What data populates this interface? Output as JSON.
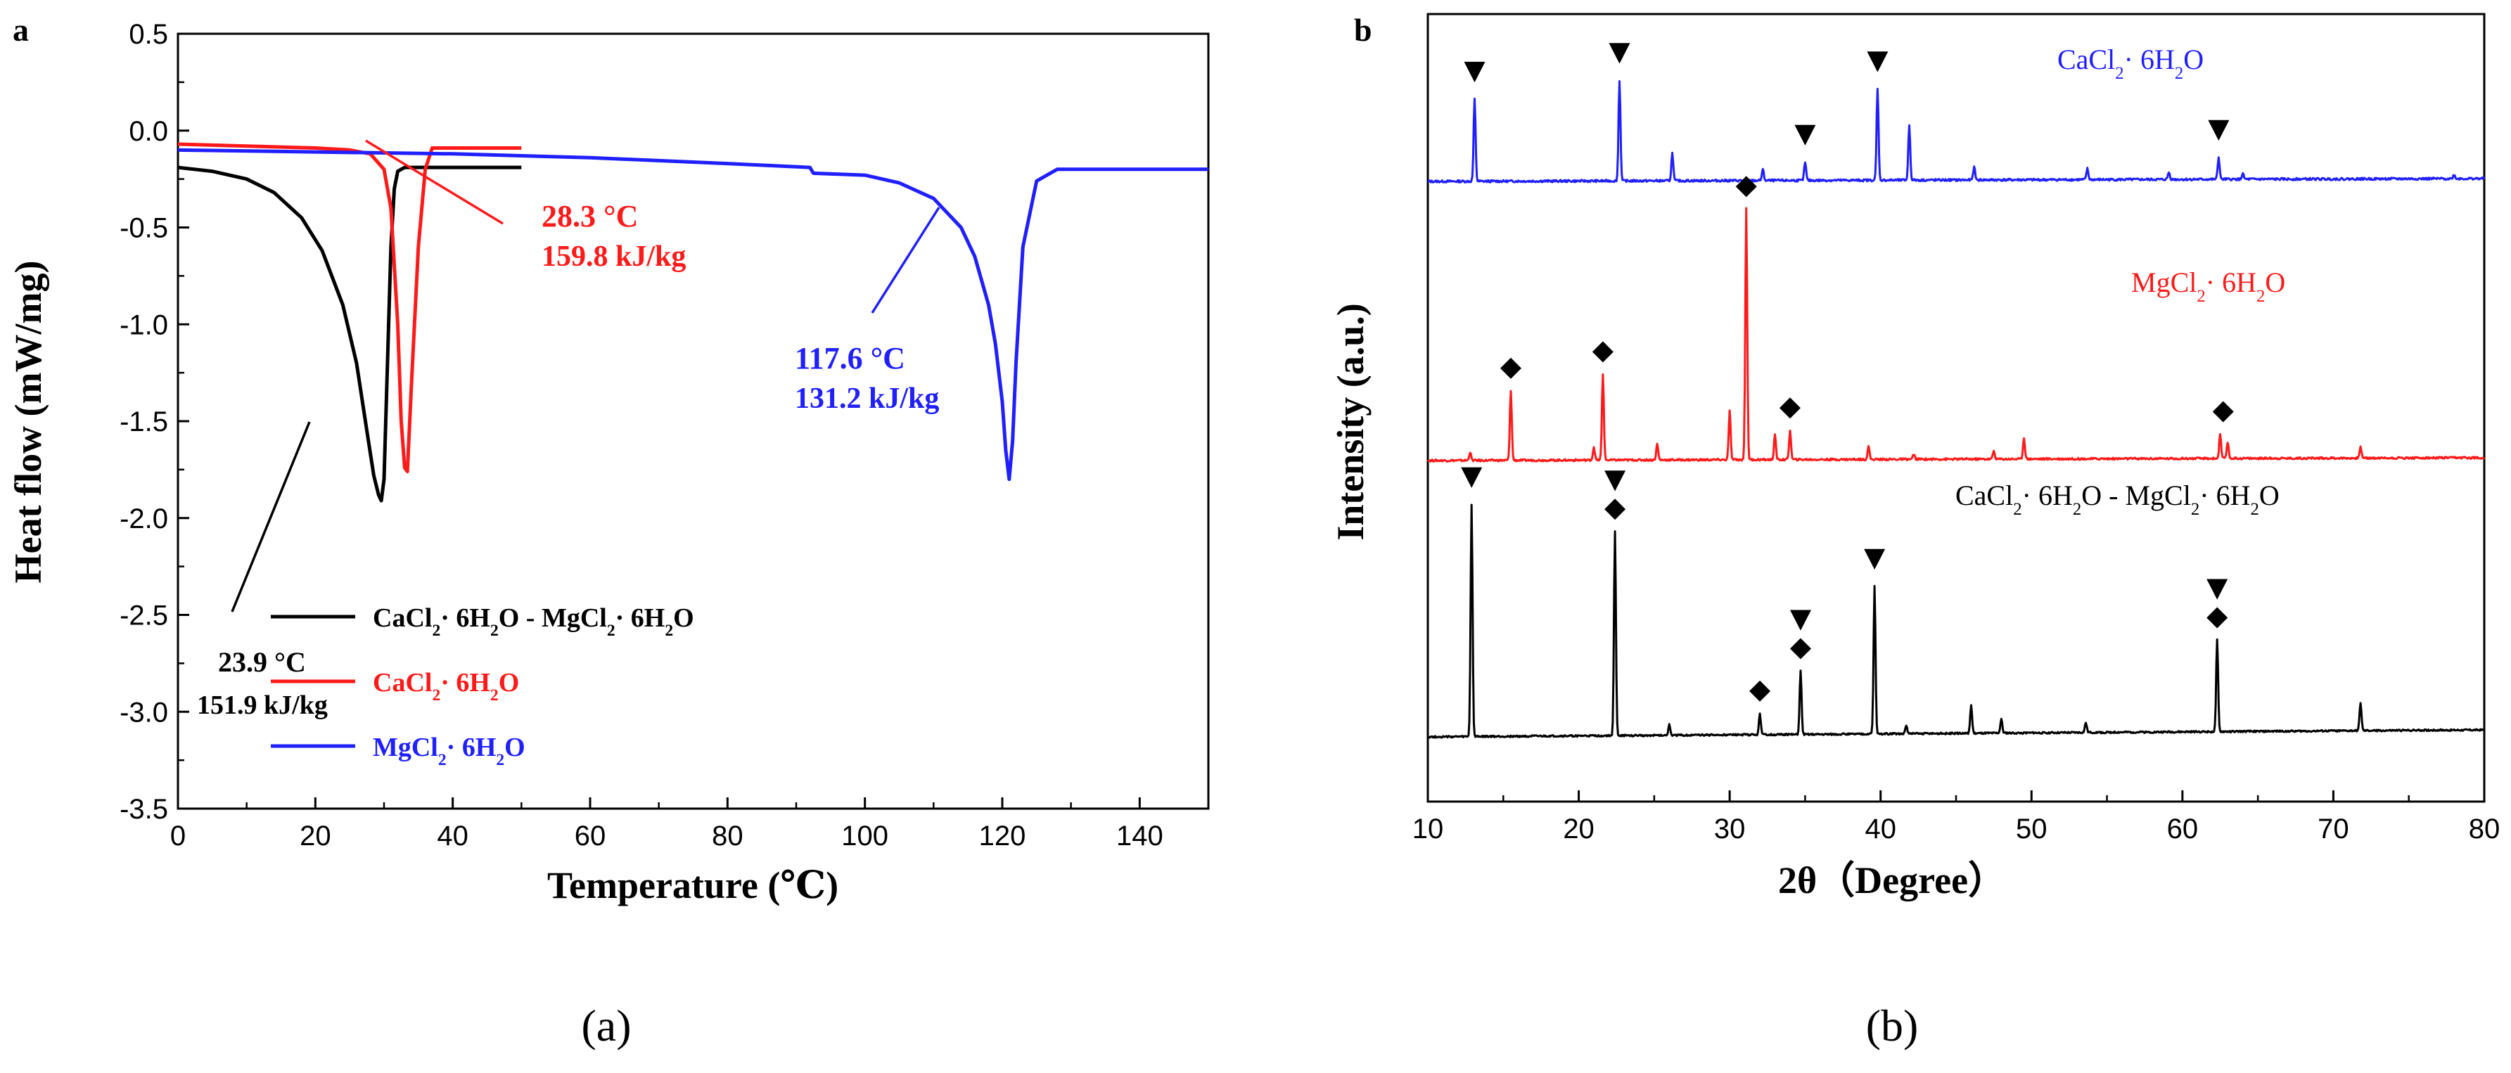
{
  "colors": {
    "black": "#000000",
    "red": "#ff1a1a",
    "blue": "#1f1fff"
  },
  "chart_data": [
    {
      "panel": "a",
      "caption": "(a)",
      "type": "line",
      "xlabel": "Temperature (℃)",
      "ylabel": "Heat flow (mW/mg)",
      "xlim": [
        0,
        150
      ],
      "ylim": [
        -3.5,
        0.5
      ],
      "xticks": [
        "0",
        "20",
        "40",
        "60",
        "80",
        "100",
        "120",
        "140"
      ],
      "yticks": [
        "0.5",
        "0.0",
        "-0.5",
        "-1.0",
        "-1.5",
        "-2.0",
        "-2.5",
        "-3.0",
        "-3.5"
      ],
      "legend": [
        {
          "pre": "CaCl",
          "s1": "2",
          "mid": "· 6H",
          "s2": "2",
          "mid2": "O - MgCl",
          "s3": "2",
          "mid3": "· 6H",
          "s4": "2",
          "post": "O",
          "color": "black"
        },
        {
          "pre": "CaCl",
          "s1": "2",
          "mid": "· 6H",
          "s2": "2",
          "post": "O",
          "color": "red"
        },
        {
          "pre": "MgCl",
          "s1": "2",
          "mid": "· 6H",
          "s2": "2",
          "post": "O",
          "color": "blue"
        }
      ],
      "annotations": [
        {
          "temp": "23.9 °C",
          "enthalpy": "151.9 kJ/kg",
          "color": "black"
        },
        {
          "temp": "28.3 °C",
          "enthalpy": "159.8 kJ/kg",
          "color": "red"
        },
        {
          "temp": "117.6 °C",
          "enthalpy": "131.2 kJ/kg",
          "color": "blue"
        }
      ],
      "series": [
        {
          "name": "CaCl2·6H2O - MgCl2·6H2O",
          "color": "black",
          "x": [
            0,
            5,
            10,
            14,
            18,
            21,
            24,
            26,
            27.5,
            28.5,
            29.2,
            29.6,
            30,
            30.5,
            31,
            31.5,
            32,
            33,
            35,
            40,
            50
          ],
          "y": [
            -0.19,
            -0.21,
            -0.25,
            -0.32,
            -0.45,
            -0.62,
            -0.9,
            -1.2,
            -1.55,
            -1.78,
            -1.88,
            -1.91,
            -1.8,
            -1.2,
            -0.6,
            -0.3,
            -0.21,
            -0.19,
            -0.19,
            -0.19,
            -0.19
          ]
        },
        {
          "name": "CaCl2·6H2O",
          "color": "red",
          "x": [
            0,
            10,
            20,
            25,
            28,
            30,
            31,
            32,
            32.5,
            33,
            33.4,
            34,
            35,
            36,
            37,
            40,
            50
          ],
          "y": [
            -0.07,
            -0.08,
            -0.09,
            -0.1,
            -0.12,
            -0.2,
            -0.4,
            -1.0,
            -1.5,
            -1.74,
            -1.76,
            -1.3,
            -0.6,
            -0.2,
            -0.09,
            -0.09,
            -0.09
          ]
        },
        {
          "name": "MgCl2·6H2O",
          "color": "blue",
          "x": [
            0,
            20,
            40,
            60,
            80,
            92,
            92.5,
            100,
            105,
            110,
            114,
            116,
            118,
            119,
            120,
            120.5,
            121,
            121.5,
            122,
            123,
            125,
            128,
            135,
            150
          ],
          "y": [
            -0.1,
            -0.11,
            -0.12,
            -0.14,
            -0.17,
            -0.19,
            -0.22,
            -0.23,
            -0.27,
            -0.35,
            -0.5,
            -0.65,
            -0.9,
            -1.1,
            -1.4,
            -1.65,
            -1.8,
            -1.6,
            -1.2,
            -0.6,
            -0.26,
            -0.2,
            -0.2,
            -0.2
          ]
        }
      ]
    },
    {
      "panel": "b",
      "caption": "(b)",
      "type": "line",
      "xlabel": "2θ（Degree）",
      "ylabel": "Intensity (a.u.)",
      "xlim": [
        10,
        80
      ],
      "xticks": [
        "10",
        "20",
        "30",
        "40",
        "50",
        "60",
        "70",
        "80"
      ],
      "series_labels": [
        {
          "pre": "CaCl",
          "s1": "2",
          "mid": "· 6H",
          "s2": "2",
          "post": "O",
          "color": "blue"
        },
        {
          "pre": "MgCl",
          "s1": "2",
          "mid": "· 6H",
          "s2": "2",
          "post": "O",
          "color": "red"
        },
        {
          "pre": "CaCl",
          "s1": "2",
          "mid": "· 6H",
          "s2": "2",
          "mid2": "O - MgCl",
          "s3": "2",
          "mid3": "· 6H",
          "s4": "2",
          "post": "O",
          "color": "black"
        }
      ],
      "series": [
        {
          "name": "CaCl2·6H2O",
          "color": "blue",
          "baseline": 1.0,
          "peaks": [
            [
              13.1,
              0.45
            ],
            [
              22.7,
              0.55
            ],
            [
              26.2,
              0.15
            ],
            [
              32.2,
              0.06
            ],
            [
              35,
              0.1
            ],
            [
              39.8,
              0.5
            ],
            [
              41.9,
              0.3
            ],
            [
              46.2,
              0.07
            ],
            [
              53.7,
              0.06
            ],
            [
              59.1,
              0.04
            ],
            [
              62.4,
              0.12
            ],
            [
              64,
              0.03
            ],
            [
              78,
              0.02
            ]
          ],
          "markers": [
            {
              "type": "triangle",
              "x": [
                13.1,
                22.7,
                35,
                39.8,
                62.4
              ]
            }
          ]
        },
        {
          "name": "MgCl2·6H2O",
          "color": "red",
          "baseline": 1.0,
          "peaks": [
            [
              12.8,
              0.05
            ],
            [
              15.5,
              0.43
            ],
            [
              21,
              0.08
            ],
            [
              21.6,
              0.53
            ],
            [
              25.2,
              0.1
            ],
            [
              30,
              0.3
            ],
            [
              31.1,
              1.55
            ],
            [
              33,
              0.15
            ],
            [
              34,
              0.18
            ],
            [
              39.2,
              0.08
            ],
            [
              42.2,
              0.03
            ],
            [
              47.5,
              0.05
            ],
            [
              49.5,
              0.13
            ],
            [
              62.5,
              0.15
            ],
            [
              63,
              0.1
            ],
            [
              71.8,
              0.07
            ]
          ],
          "markers": [
            {
              "type": "diamond",
              "x": [
                15.5,
                21.6,
                31.1,
                34,
                62.7
              ]
            }
          ]
        },
        {
          "name": "CaCl2·6H2O - MgCl2·6H2O",
          "color": "black",
          "baseline": 1.0,
          "peaks": [
            [
              12.9,
              1.65
            ],
            [
              22.4,
              1.45
            ],
            [
              26,
              0.08
            ],
            [
              32,
              0.15
            ],
            [
              34.7,
              0.45
            ],
            [
              39.6,
              1.05
            ],
            [
              41.7,
              0.06
            ],
            [
              46,
              0.2
            ],
            [
              48,
              0.1
            ],
            [
              53.6,
              0.07
            ],
            [
              62.3,
              0.65
            ],
            [
              71.8,
              0.2
            ]
          ],
          "markers": [
            {
              "type": "triangle",
              "x": [
                12.9,
                22.4,
                34.7,
                39.6,
                62.3
              ]
            },
            {
              "type": "diamond",
              "x": [
                22.4,
                32,
                34.7,
                62.3
              ]
            }
          ]
        }
      ]
    }
  ]
}
